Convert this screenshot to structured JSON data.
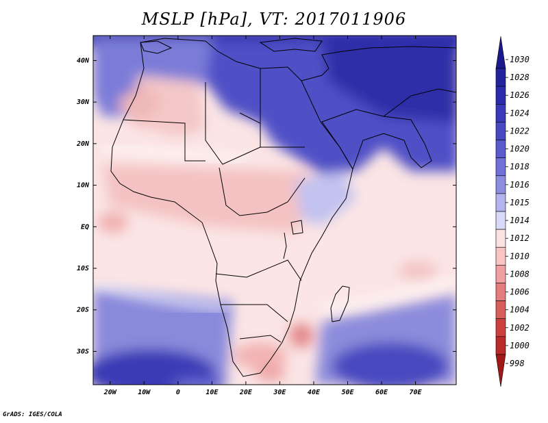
{
  "title": "MSLP [hPa], VT: 2017011906",
  "credit": "GrADS: IGES/COLA",
  "chart_data": {
    "type": "heatmap",
    "title": "MSLP [hPa], VT: 2017011906",
    "variable": "Mean sea level pressure",
    "units": "hPa",
    "valid_time": "2017011906",
    "lon_range": [
      -25,
      82
    ],
    "lat_range": [
      -38,
      46
    ],
    "x_ticks": [
      "20W",
      "10W",
      "0",
      "10E",
      "20E",
      "30E",
      "40E",
      "50E",
      "60E",
      "70E"
    ],
    "y_ticks": [
      "40N",
      "30N",
      "20N",
      "10N",
      "EQ",
      "10S",
      "20S",
      "30S"
    ],
    "colorbar": {
      "levels": [
        "1030",
        "1028",
        "1026",
        "1024",
        "1022",
        "1020",
        "1018",
        "1016",
        "1015",
        "1014",
        "1012",
        "1010",
        "1008",
        "1006",
        "1004",
        "1002",
        "1000",
        "998"
      ],
      "colors": [
        "#1a1a8c",
        "#23239e",
        "#2c2cab",
        "#3a3ab8",
        "#4848c2",
        "#5a5acc",
        "#7070d6",
        "#8d8de0",
        "#b3b3ee",
        "#d8d8f8",
        "#fbe2e2",
        "#f8c4c4",
        "#f0a0a0",
        "#e47e7e",
        "#d85e5e",
        "#cc4040",
        "#bb2a2a",
        "#a01818"
      ]
    }
  }
}
